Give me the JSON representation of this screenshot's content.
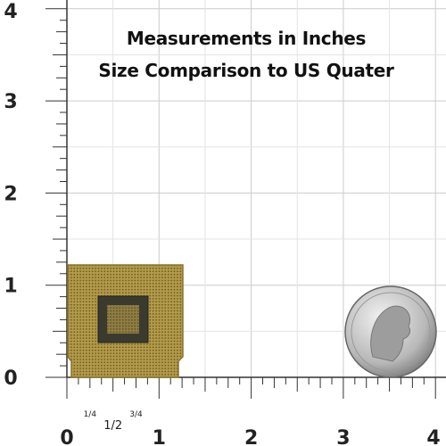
{
  "title": {
    "line1": "Measurements in Inches",
    "line2": "Size Comparison to US Quater"
  },
  "ruler": {
    "x_labels": [
      "0",
      "1",
      "2",
      "3",
      "4"
    ],
    "y_labels": [
      "0",
      "1",
      "2",
      "3",
      "4"
    ],
    "fraction_labels": [
      "1/4",
      "1/2",
      "3/4"
    ]
  }
}
